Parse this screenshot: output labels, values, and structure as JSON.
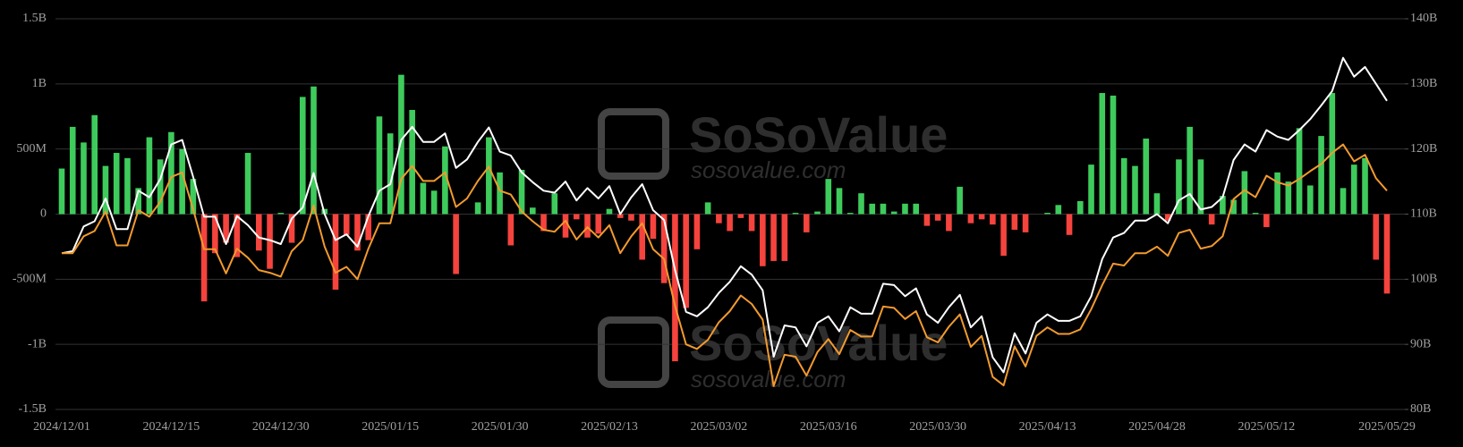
{
  "chart_data": {
    "type": "bar",
    "watermark": "SoSoValue",
    "watermark_url": "sosovalue.com",
    "categories": [
      "2024/12/01",
      null,
      null,
      null,
      null,
      null,
      null,
      null,
      null,
      null,
      "2024/12/15",
      null,
      null,
      null,
      null,
      null,
      null,
      null,
      null,
      null,
      "2024/12/30",
      null,
      null,
      null,
      null,
      null,
      null,
      null,
      null,
      null,
      "2025/01/15",
      null,
      null,
      null,
      null,
      null,
      null,
      null,
      null,
      null,
      "2025/01/30",
      null,
      null,
      null,
      null,
      null,
      null,
      null,
      null,
      null,
      "2025/02/13",
      null,
      null,
      null,
      null,
      null,
      null,
      null,
      null,
      null,
      "2025/03/02",
      null,
      null,
      null,
      null,
      null,
      null,
      null,
      null,
      null,
      "2025/03/16",
      null,
      null,
      null,
      null,
      null,
      null,
      null,
      null,
      null,
      "2025/03/30",
      null,
      null,
      null,
      null,
      null,
      null,
      null,
      null,
      null,
      "2025/04/13",
      null,
      null,
      null,
      null,
      null,
      null,
      null,
      null,
      null,
      "2025/04/28",
      null,
      null,
      null,
      null,
      null,
      null,
      null,
      null,
      null,
      "2025/05/12",
      null,
      null,
      null,
      null,
      null,
      null,
      null,
      null,
      null,
      null,
      "2025/05/29"
    ],
    "ylim": [
      -1.5,
      1.5
    ],
    "yticks": [
      {
        "value": -1.5,
        "label": "-1.5B"
      },
      {
        "value": -1,
        "label": "-1B"
      },
      {
        "value": -0.5,
        "label": "-500M"
      },
      0,
      {
        "value": 0.5,
        "label": "500M"
      },
      {
        "value": 1,
        "label": "1B"
      },
      {
        "value": 1.5,
        "label": "1.5B"
      }
    ],
    "y2lim": [
      80,
      140
    ],
    "y2ticks": [
      {
        "value": 80,
        "label": "80B"
      },
      {
        "value": 90,
        "label": "90B"
      },
      {
        "value": 100,
        "label": "100B"
      },
      {
        "value": 110,
        "label": "110B"
      },
      {
        "value": 120,
        "label": "120B"
      },
      {
        "value": 130,
        "label": "130B"
      },
      {
        "value": 140,
        "label": "140B"
      }
    ],
    "grid": true,
    "series": [
      {
        "type": "bar",
        "positive_color": "#3ecb5c",
        "negative_color": "#f5433d",
        "values": [
          0.35,
          0.67,
          0.55,
          0.76,
          0.37,
          0.47,
          0.43,
          0.2,
          0.59,
          0.42,
          0.63,
          0.5,
          0.27,
          -0.67,
          -0.3,
          -0.22,
          -0.33,
          0.47,
          -0.28,
          -0.42,
          0.01,
          -0.22,
          0.9,
          0.98,
          0.04,
          -0.58,
          -0.16,
          -0.28,
          -0.2,
          0.75,
          0.62,
          1.07,
          0.8,
          0.24,
          0.18,
          0.52,
          -0.46,
          null,
          0.09,
          0.59,
          0.32,
          -0.24,
          0.34,
          0.05,
          -0.13,
          0.16,
          -0.18,
          -0.04,
          -0.18,
          -0.15,
          0.04,
          -0.03,
          -0.05,
          -0.35,
          -0.19,
          -0.53,
          -1.13,
          -0.72,
          -0.27,
          0.09,
          -0.07,
          -0.13,
          -0.03,
          -0.13,
          -0.4,
          -0.36,
          -0.36,
          0.01,
          -0.14,
          0.02,
          0.27,
          0.2,
          0.01,
          0.16,
          0.08,
          0.08,
          0.02,
          0.08,
          0.08,
          -0.09,
          -0.05,
          -0.13,
          0.21,
          -0.07,
          -0.04,
          -0.08,
          -0.32,
          -0.12,
          -0.14,
          null,
          0.01,
          0.07,
          -0.16,
          0.1,
          0.38,
          0.93,
          0.91,
          0.43,
          0.37,
          0.58,
          0.16,
          -0.05,
          0.42,
          0.67,
          0.42,
          -0.08,
          0.14,
          0.11,
          0.33,
          0.01,
          -0.1,
          0.32,
          0.25,
          0.66,
          0.22,
          0.6,
          0.93,
          0.2,
          0.38,
          0.43,
          -0.35,
          -0.61
        ]
      },
      {
        "type": "line",
        "axis": "y2",
        "color": "#ffffff",
        "values": [
          104.0,
          104.3,
          108.1,
          108.9,
          112.4,
          107.7,
          107.7,
          113.6,
          112.6,
          115.4,
          120.7,
          121.4,
          115.7,
          109.6,
          109.6,
          105.4,
          109.7,
          108.3,
          106.4,
          106.0,
          105.4,
          109.3,
          111.0,
          116.3,
          110.0,
          106.0,
          106.9,
          105.0,
          109.7,
          113.6,
          114.6,
          121.4,
          123.4,
          121.1,
          121.1,
          122.4,
          117.1,
          118.4,
          121.1,
          123.3,
          119.6,
          119.0,
          116.4,
          114.9,
          113.6,
          113.3,
          115.0,
          112.1,
          114.0,
          112.4,
          114.3,
          110.0,
          112.6,
          114.6,
          110.6,
          109.1,
          101.4,
          95.0,
          94.3,
          95.7,
          97.9,
          99.6,
          102.0,
          100.7,
          98.3,
          88.1,
          92.9,
          92.6,
          89.7,
          93.3,
          94.3,
          92.0,
          95.7,
          94.7,
          94.7,
          99.3,
          99.1,
          97.4,
          98.6,
          94.6,
          93.3,
          95.7,
          97.6,
          92.6,
          94.3,
          88.0,
          85.7,
          91.7,
          88.6,
          93.3,
          94.6,
          93.6,
          93.6,
          94.3,
          97.4,
          103.1,
          106.4,
          107.1,
          109.0,
          109.0,
          110.0,
          108.6,
          112.1,
          113.1,
          110.7,
          111.1,
          112.6,
          118.3,
          120.7,
          119.6,
          122.9,
          121.9,
          121.4,
          122.9,
          124.6,
          126.7,
          128.9,
          134.0,
          131.1,
          132.6,
          130.0,
          127.4
        ]
      },
      {
        "type": "line",
        "axis": "y2",
        "color": "#f29a2e",
        "values": [
          104.0,
          104.0,
          106.6,
          107.4,
          110.4,
          105.2,
          105.2,
          110.6,
          109.6,
          111.9,
          115.7,
          116.4,
          110.7,
          104.6,
          104.6,
          100.9,
          104.7,
          103.3,
          101.4,
          101.0,
          100.4,
          104.3,
          106.0,
          111.3,
          105.0,
          101.0,
          101.9,
          100.0,
          104.7,
          108.6,
          108.6,
          115.4,
          117.4,
          115.1,
          115.1,
          116.4,
          111.1,
          112.4,
          115.1,
          117.3,
          113.6,
          113.0,
          110.4,
          108.9,
          107.6,
          107.3,
          109.0,
          106.1,
          108.0,
          106.4,
          108.3,
          104.0,
          106.6,
          108.6,
          104.6,
          103.1,
          95.9,
          90.0,
          89.3,
          90.7,
          93.4,
          95.1,
          97.5,
          96.2,
          93.8,
          83.6,
          88.4,
          88.1,
          85.2,
          88.8,
          90.8,
          88.5,
          92.2,
          91.2,
          91.2,
          95.8,
          95.6,
          93.9,
          95.1,
          91.1,
          90.3,
          92.7,
          94.6,
          89.6,
          91.3,
          85.0,
          83.7,
          89.7,
          86.6,
          91.3,
          92.6,
          91.6,
          91.6,
          92.3,
          95.4,
          99.1,
          102.4,
          102.1,
          104.0,
          104.0,
          105.0,
          103.6,
          107.1,
          107.6,
          104.7,
          105.1,
          106.6,
          112.3,
          113.7,
          112.6,
          115.9,
          114.9,
          114.4,
          115.4,
          116.6,
          117.7,
          119.4,
          120.7,
          118.1,
          119.1,
          115.5,
          113.6
        ]
      }
    ]
  }
}
